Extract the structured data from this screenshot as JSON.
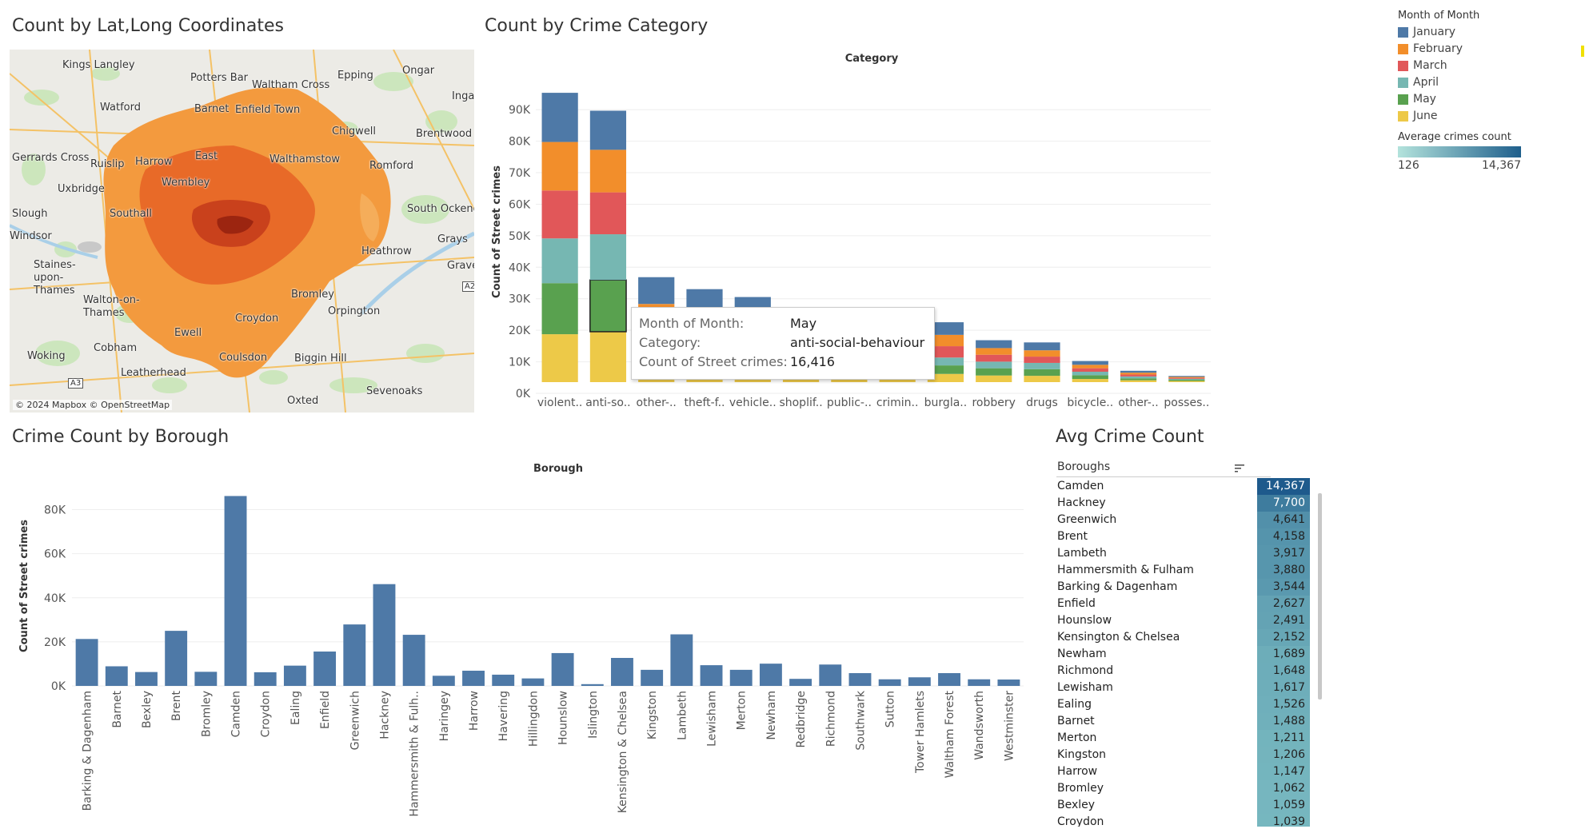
{
  "titles": {
    "map": "Count by Lat,Long Coordinates",
    "category": "Count by Crime Category",
    "borough": "Crime Count by Borough",
    "avg": "Avg Crime Count"
  },
  "map": {
    "attribution": "© 2024 Mapbox © OpenStreetMap",
    "places": [
      "Kings Langley",
      "Potters Bar",
      "Waltham Cross",
      "Epping",
      "Ongar",
      "Watford",
      "Barnet",
      "Enfield Town",
      "Ingat",
      "Chigwell",
      "Brentwood",
      "Gerrards Cross",
      "Ruislip",
      "Harrow",
      "East",
      "Walthamstow",
      "Romford",
      "Uxbridge",
      "Wembley",
      "Slough",
      "Southall",
      "South Ockendon",
      "Windsor",
      "Grays",
      "Staines-upon-Thames",
      "Heathrow",
      "Grave",
      "A2",
      "Bromley",
      "Walton-on-Thames",
      "Orpington",
      "Ewell",
      "Croydon",
      "Woking",
      "Cobham",
      "Coulsdon",
      "Biggin Hill",
      "A3",
      "Leatherhead",
      "Sevenoaks",
      "Oxted"
    ]
  },
  "legend": {
    "title": "Month of Month",
    "items": [
      {
        "label": "January",
        "color": "#4e79a7"
      },
      {
        "label": "February",
        "color": "#f28e2b"
      },
      {
        "label": "March",
        "color": "#e15759"
      },
      {
        "label": "April",
        "color": "#76b7b2"
      },
      {
        "label": "May",
        "color": "#59a14f"
      },
      {
        "label": "June",
        "color": "#edc948"
      }
    ],
    "gradient_title": "Average crimes count",
    "gradient_min": "126",
    "gradient_max": "14,367"
  },
  "tooltip": {
    "rows": [
      {
        "key": "Month of Month:",
        "value": "May"
      },
      {
        "key": "Category:",
        "value": "anti-social-behaviour"
      },
      {
        "key": "Count of Street crimes:",
        "value": "16,416"
      }
    ]
  },
  "chart_data": [
    {
      "type": "bar",
      "stacked": true,
      "title": "Category",
      "ylabel": "Count of Street crimes",
      "ylim": [
        0,
        95000
      ],
      "yticks": [
        0,
        10000,
        20000,
        30000,
        40000,
        50000,
        60000,
        70000,
        80000,
        90000
      ],
      "ytick_labels": [
        "0K",
        "10K",
        "20K",
        "30K",
        "40K",
        "50K",
        "60K",
        "70K",
        "80K",
        "90K"
      ],
      "categories": [
        "violent..",
        "anti-so..",
        "other-..",
        "theft-f..",
        "vehicle..",
        "shoplif..",
        "public-..",
        "crimin..",
        "burgla..",
        "robbery",
        "drugs",
        "bicycle..",
        "other-..",
        "posses.."
      ],
      "series": [
        {
          "name": "June",
          "values": [
            15200,
            16000,
            4000,
            4000,
            4000,
            4000,
            3500,
            3000,
            2600,
            2100,
            2000,
            1000,
            600,
            350
          ]
        },
        {
          "name": "May",
          "values": [
            16200,
            16416,
            4200,
            4000,
            3800,
            4000,
            3500,
            3100,
            2700,
            2300,
            2100,
            1200,
            600,
            400
          ]
        },
        {
          "name": "April",
          "values": [
            14200,
            14500,
            4000,
            3900,
            3800,
            3800,
            3300,
            2900,
            2500,
            2100,
            2000,
            1100,
            600,
            300
          ]
        },
        {
          "name": "March",
          "values": [
            15200,
            13300,
            3600,
            3600,
            3400,
            3500,
            3100,
            2700,
            3600,
            2200,
            2000,
            1100,
            600,
            300
          ]
        },
        {
          "name": "February",
          "values": [
            15400,
            13500,
            9000,
            7500,
            5500,
            4000,
            3500,
            3000,
            3600,
            2100,
            2000,
            1100,
            600,
            300
          ]
        },
        {
          "name": "January",
          "values": [
            15600,
            12400,
            8500,
            6500,
            6500,
            1900,
            0,
            0,
            4000,
            2500,
            2500,
            1200,
            600,
            300
          ]
        }
      ],
      "highlight": {
        "category": "anti-so..",
        "series": "May"
      }
    },
    {
      "type": "bar",
      "title": "Borough",
      "ylabel": "Count of Street crimes",
      "ylim": [
        0,
        90000
      ],
      "yticks": [
        0,
        20000,
        40000,
        60000,
        80000
      ],
      "ytick_labels": [
        "0K",
        "20K",
        "40K",
        "60K",
        "80K"
      ],
      "categories": [
        "Barking & Dagenham",
        "Barnet",
        "Bexley",
        "Brent",
        "Bromley",
        "Camden",
        "Croydon",
        "Ealing",
        "Enfield",
        "Greenwich",
        "Hackney",
        "Hammersmith & Fulh..",
        "Haringey",
        "Harrow",
        "Havering",
        "Hillingdon",
        "Hounslow",
        "Islington",
        "Kensington & Chelsea",
        "Kingston",
        "Lambeth",
        "Lewisham",
        "Merton",
        "Newham",
        "Redbridge",
        "Richmond",
        "Southwark",
        "Sutton",
        "Tower Hamlets",
        "Waltham Forest",
        "Wandsworth",
        "Westminster"
      ],
      "values": [
        21300,
        8900,
        6300,
        25000,
        6400,
        86200,
        6200,
        9200,
        15600,
        27900,
        46200,
        23200,
        4600,
        6900,
        5100,
        3400,
        14900,
        800,
        12700,
        7300,
        23400,
        9400,
        7300,
        10100,
        3200,
        9700,
        5800,
        3000,
        3900,
        5800,
        3000,
        2900
      ]
    }
  ],
  "avg_table": {
    "header": "Boroughs",
    "color_min": 126,
    "color_max": 14367,
    "rows": [
      {
        "name": "Camden",
        "value": "14,367",
        "num": 14367
      },
      {
        "name": "Hackney",
        "value": "7,700",
        "num": 7700
      },
      {
        "name": "Greenwich",
        "value": "4,641",
        "num": 4641
      },
      {
        "name": "Brent",
        "value": "4,158",
        "num": 4158
      },
      {
        "name": "Lambeth",
        "value": "3,917",
        "num": 3917
      },
      {
        "name": "Hammersmith & Fulham",
        "value": "3,880",
        "num": 3880
      },
      {
        "name": "Barking & Dagenham",
        "value": "3,544",
        "num": 3544
      },
      {
        "name": "Enfield",
        "value": "2,627",
        "num": 2627
      },
      {
        "name": "Hounslow",
        "value": "2,491",
        "num": 2491
      },
      {
        "name": "Kensington & Chelsea",
        "value": "2,152",
        "num": 2152
      },
      {
        "name": "Newham",
        "value": "1,689",
        "num": 1689
      },
      {
        "name": "Richmond",
        "value": "1,648",
        "num": 1648
      },
      {
        "name": "Lewisham",
        "value": "1,617",
        "num": 1617
      },
      {
        "name": "Ealing",
        "value": "1,526",
        "num": 1526
      },
      {
        "name": "Barnet",
        "value": "1,488",
        "num": 1488
      },
      {
        "name": "Merton",
        "value": "1,211",
        "num": 1211
      },
      {
        "name": "Kingston",
        "value": "1,206",
        "num": 1206
      },
      {
        "name": "Harrow",
        "value": "1,147",
        "num": 1147
      },
      {
        "name": "Bromley",
        "value": "1,062",
        "num": 1062
      },
      {
        "name": "Bexley",
        "value": "1,059",
        "num": 1059
      },
      {
        "name": "Croydon",
        "value": "1,039",
        "num": 1039
      }
    ]
  }
}
